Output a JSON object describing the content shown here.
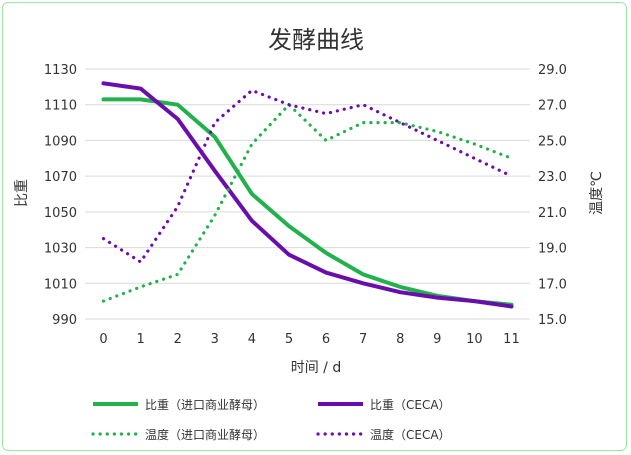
{
  "chart_data": {
    "type": "line",
    "title": "发酵曲线",
    "xlabel": "时间 / d",
    "ylabel_left": "比重",
    "ylabel_right": "温度℃",
    "x": [
      0,
      1,
      2,
      3,
      4,
      5,
      6,
      7,
      8,
      9,
      10,
      11
    ],
    "x_tick_labels": [
      "0",
      "1",
      "2",
      "3",
      "4",
      "5",
      "6",
      "7",
      "8",
      "9",
      "10",
      "11"
    ],
    "ylim_left": [
      990,
      1130
    ],
    "y_ticks_left": [
      "990",
      "1010",
      "1030",
      "1050",
      "1070",
      "1090",
      "1110",
      "1130"
    ],
    "ylim_right": [
      15.0,
      29.0
    ],
    "y_ticks_right": [
      "15.0",
      "17.0",
      "19.0",
      "21.0",
      "23.0",
      "25.0",
      "27.0",
      "29.0"
    ],
    "grid": true,
    "legend_position": "bottom",
    "series": [
      {
        "name": "比重（进口商业酵母）",
        "axis": "left",
        "style": "solid",
        "color": "#22b14c",
        "values": [
          1113,
          1113,
          1110,
          1092,
          1060,
          1042,
          1027,
          1015,
          1008,
          1003,
          1000,
          998
        ]
      },
      {
        "name": "比重（CECA）",
        "axis": "left",
        "style": "solid",
        "color": "#6a0dad",
        "values": [
          1122,
          1119,
          1102,
          1073,
          1045,
          1026,
          1016,
          1010,
          1005,
          1002,
          1000,
          997
        ]
      },
      {
        "name": "温度（进口商业酵母）",
        "axis": "right",
        "style": "dotted",
        "color": "#22b14c",
        "values": [
          16.0,
          16.8,
          17.5,
          20.8,
          24.8,
          27.0,
          25.0,
          26.0,
          26.0,
          25.5,
          24.8,
          24.0
        ]
      },
      {
        "name": "温度（CECA）",
        "axis": "right",
        "style": "dotted",
        "color": "#6a0dad",
        "values": [
          19.5,
          18.2,
          21.3,
          26.0,
          27.8,
          27.0,
          26.5,
          27.0,
          26.0,
          25.0,
          24.0,
          23.0
        ]
      }
    ]
  }
}
